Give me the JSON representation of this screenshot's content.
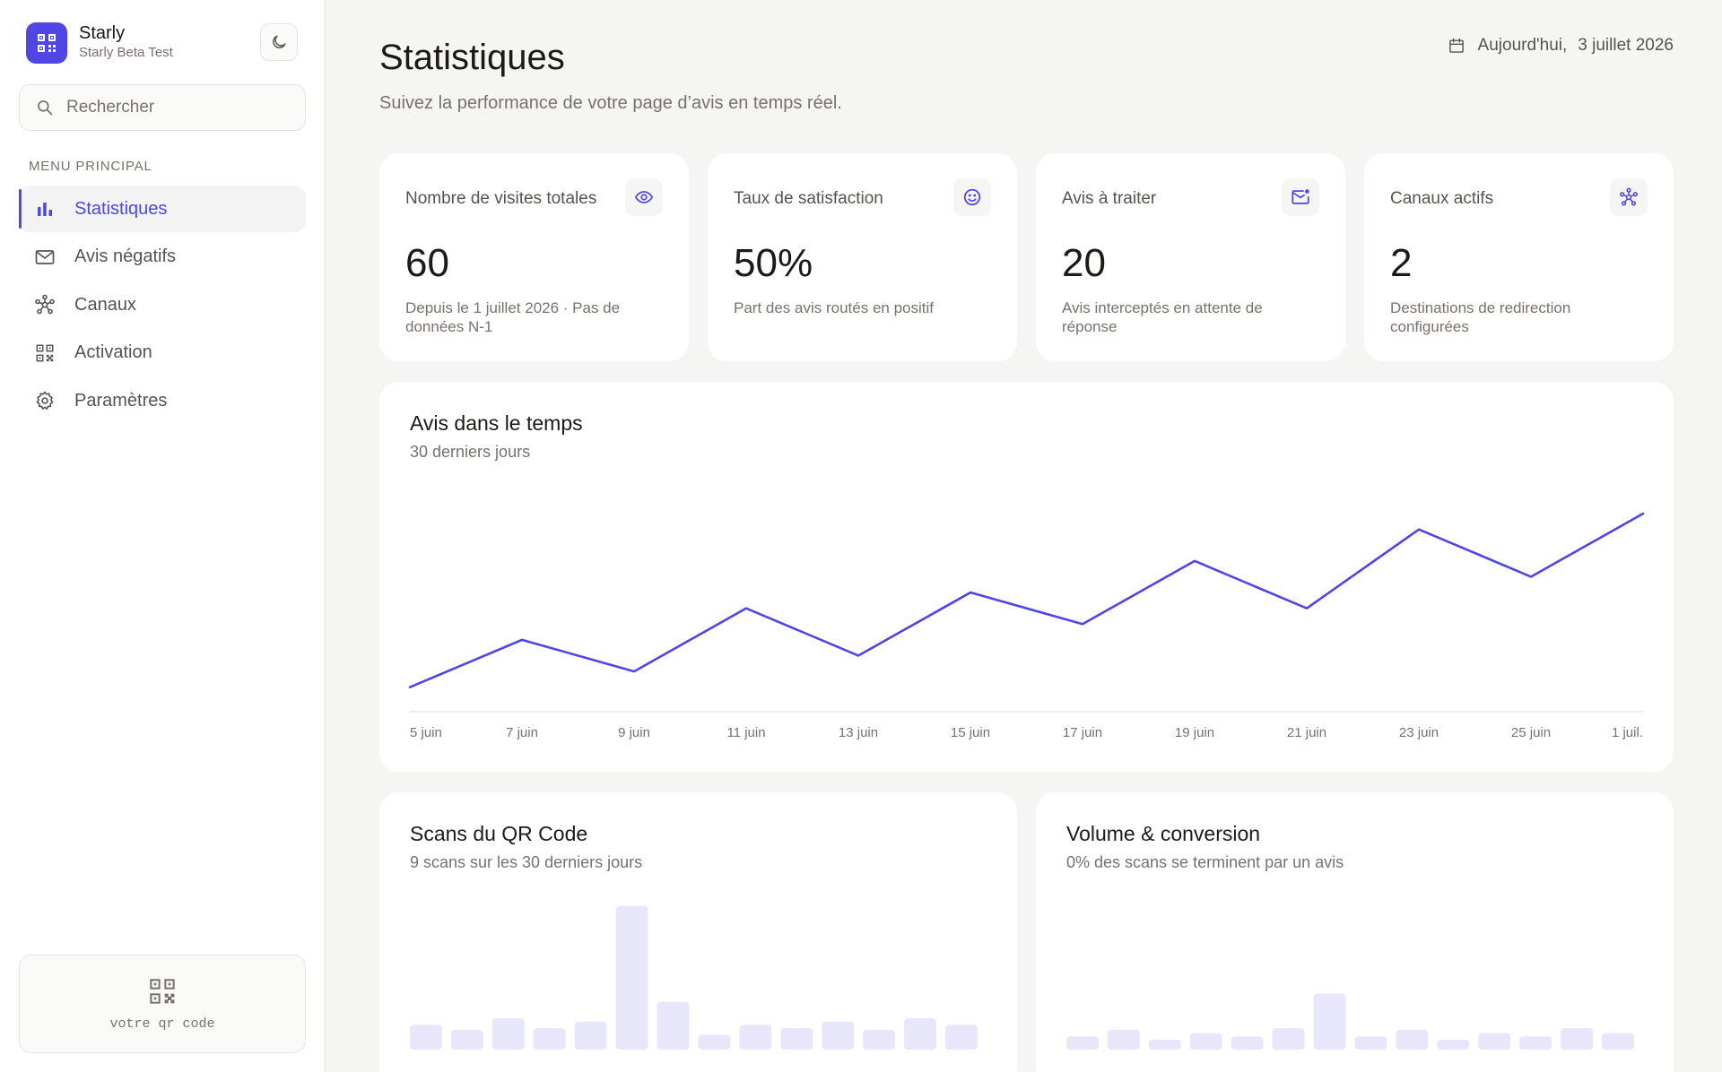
{
  "app": {
    "name": "Starly",
    "workspace": "Starly Beta Test",
    "search_placeholder": "Rechercher",
    "menu_label": "MENU PRINCIPAL",
    "qr_label": "votre qr code",
    "accent_color": "#4f46e5"
  },
  "nav": [
    {
      "label": "Statistiques",
      "icon": "bar-chart-icon",
      "active": true
    },
    {
      "label": "Avis négatifs",
      "icon": "mail-icon",
      "active": false
    },
    {
      "label": "Canaux",
      "icon": "network-icon",
      "active": false
    },
    {
      "label": "Activation",
      "icon": "qr-code-icon",
      "active": false
    },
    {
      "label": "Paramètres",
      "icon": "gear-icon",
      "active": false
    }
  ],
  "header": {
    "title": "Statistiques",
    "subtitle": "Suivez la performance de votre page d’avis en temps réel.",
    "date_prefix": "Aujourd'hui,",
    "date_value": "3 juillet 2026"
  },
  "kpis": [
    {
      "label": "Nombre de visites totales",
      "value": "60",
      "desc": "Depuis le 1 juillet 2026 · Pas de données N-1",
      "icon": "eye-icon"
    },
    {
      "label": "Taux de satisfaction",
      "value": "50%",
      "desc": "Part des avis routés en positif",
      "icon": "smile-icon"
    },
    {
      "label": "Avis à traiter",
      "value": "20",
      "desc": "Avis interceptés en attente de réponse",
      "icon": "mail-notification-icon"
    },
    {
      "label": "Canaux actifs",
      "value": "2",
      "desc": "Destinations de redirection configurées",
      "icon": "network-icon"
    }
  ],
  "chart_data": [
    {
      "type": "line",
      "title": "Avis dans le temps",
      "subtitle": "30 derniers jours",
      "x": [
        "5 juin",
        "7 juin",
        "9 juin",
        "11 juin",
        "13 juin",
        "15 juin",
        "17 juin",
        "19 juin",
        "21 juin",
        "23 juin",
        "25 juin",
        "1 juil."
      ],
      "values": [
        0,
        3,
        1,
        5,
        2,
        6,
        4,
        8,
        5,
        10,
        7,
        11
      ],
      "ylim": [
        -0.7,
        11.4
      ],
      "grid": false,
      "color": "#4f46e5"
    },
    {
      "type": "bar",
      "title": "Scans du QR Code",
      "subtitle": "9 scans sur les 30 derniers jours",
      "values": [
        1.5,
        1.2,
        1.9,
        1.3,
        1.7,
        8.7,
        2.9,
        0.9,
        1.5,
        1.3,
        1.7,
        1.2,
        1.9,
        1.5
      ],
      "ylim": [
        0,
        10
      ],
      "color": "#e8e6fb"
    },
    {
      "type": "bar",
      "title": "Volume & conversion",
      "subtitle": "0% des scans se terminent par un avis",
      "values": [
        0.8,
        1.2,
        0.6,
        1.0,
        0.8,
        1.3,
        3.4,
        0.8,
        1.2,
        0.6,
        1.0,
        0.8,
        1.3,
        1.0
      ],
      "ylim": [
        0,
        10
      ],
      "color": "#e8e6fb"
    }
  ]
}
